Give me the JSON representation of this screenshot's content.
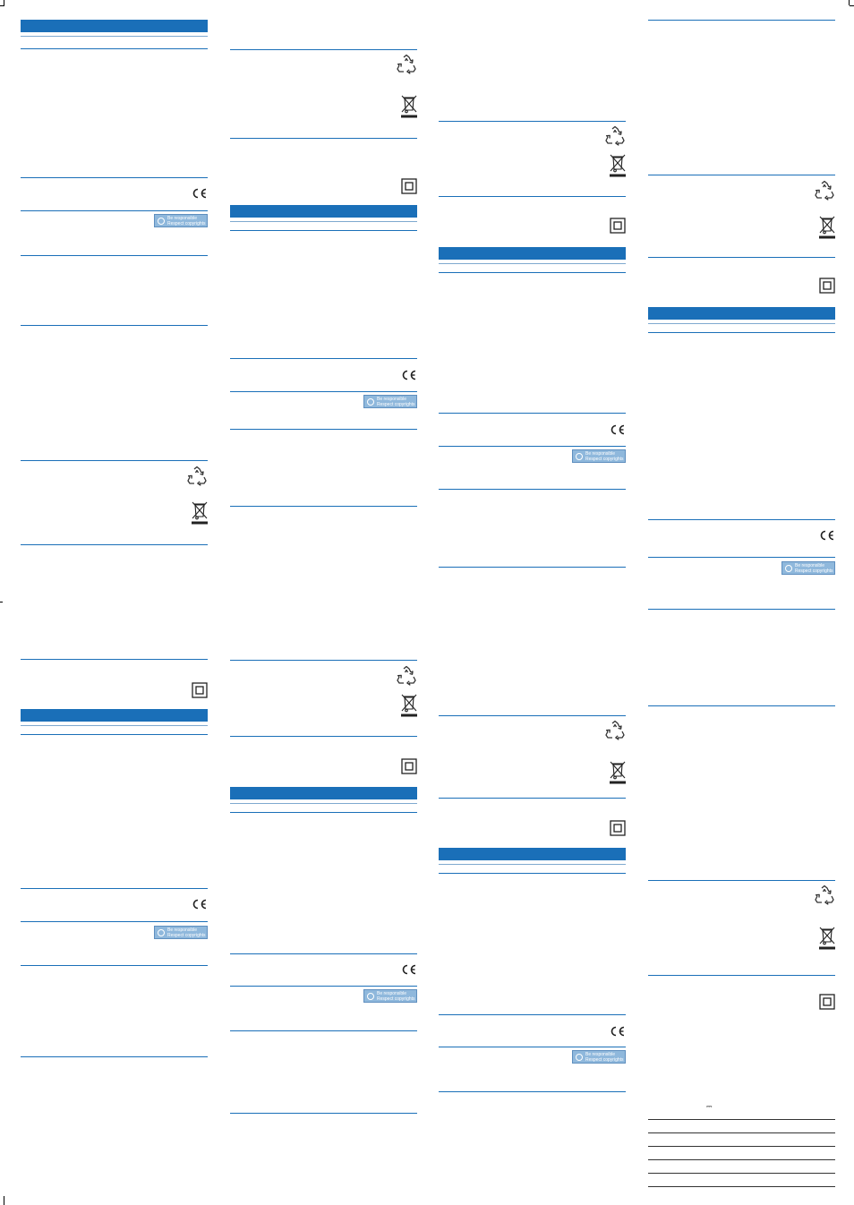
{
  "page": {
    "background": "#ffffff"
  },
  "colors": {
    "accent": "#1a6fb8",
    "badge_fill": "#8fb8dc"
  },
  "badge": {
    "line1": "Be responsible",
    "line2": "Respect copyrights"
  },
  "icons": {
    "recycle": "recycle-icon",
    "weee": "crossed-out-wheelie-bin-icon",
    "ce": "ce-mark-icon",
    "class2": "double-insulation-icon"
  },
  "ce_text": "CE",
  "spec_table": {
    "dc_symbol": "⎓"
  }
}
